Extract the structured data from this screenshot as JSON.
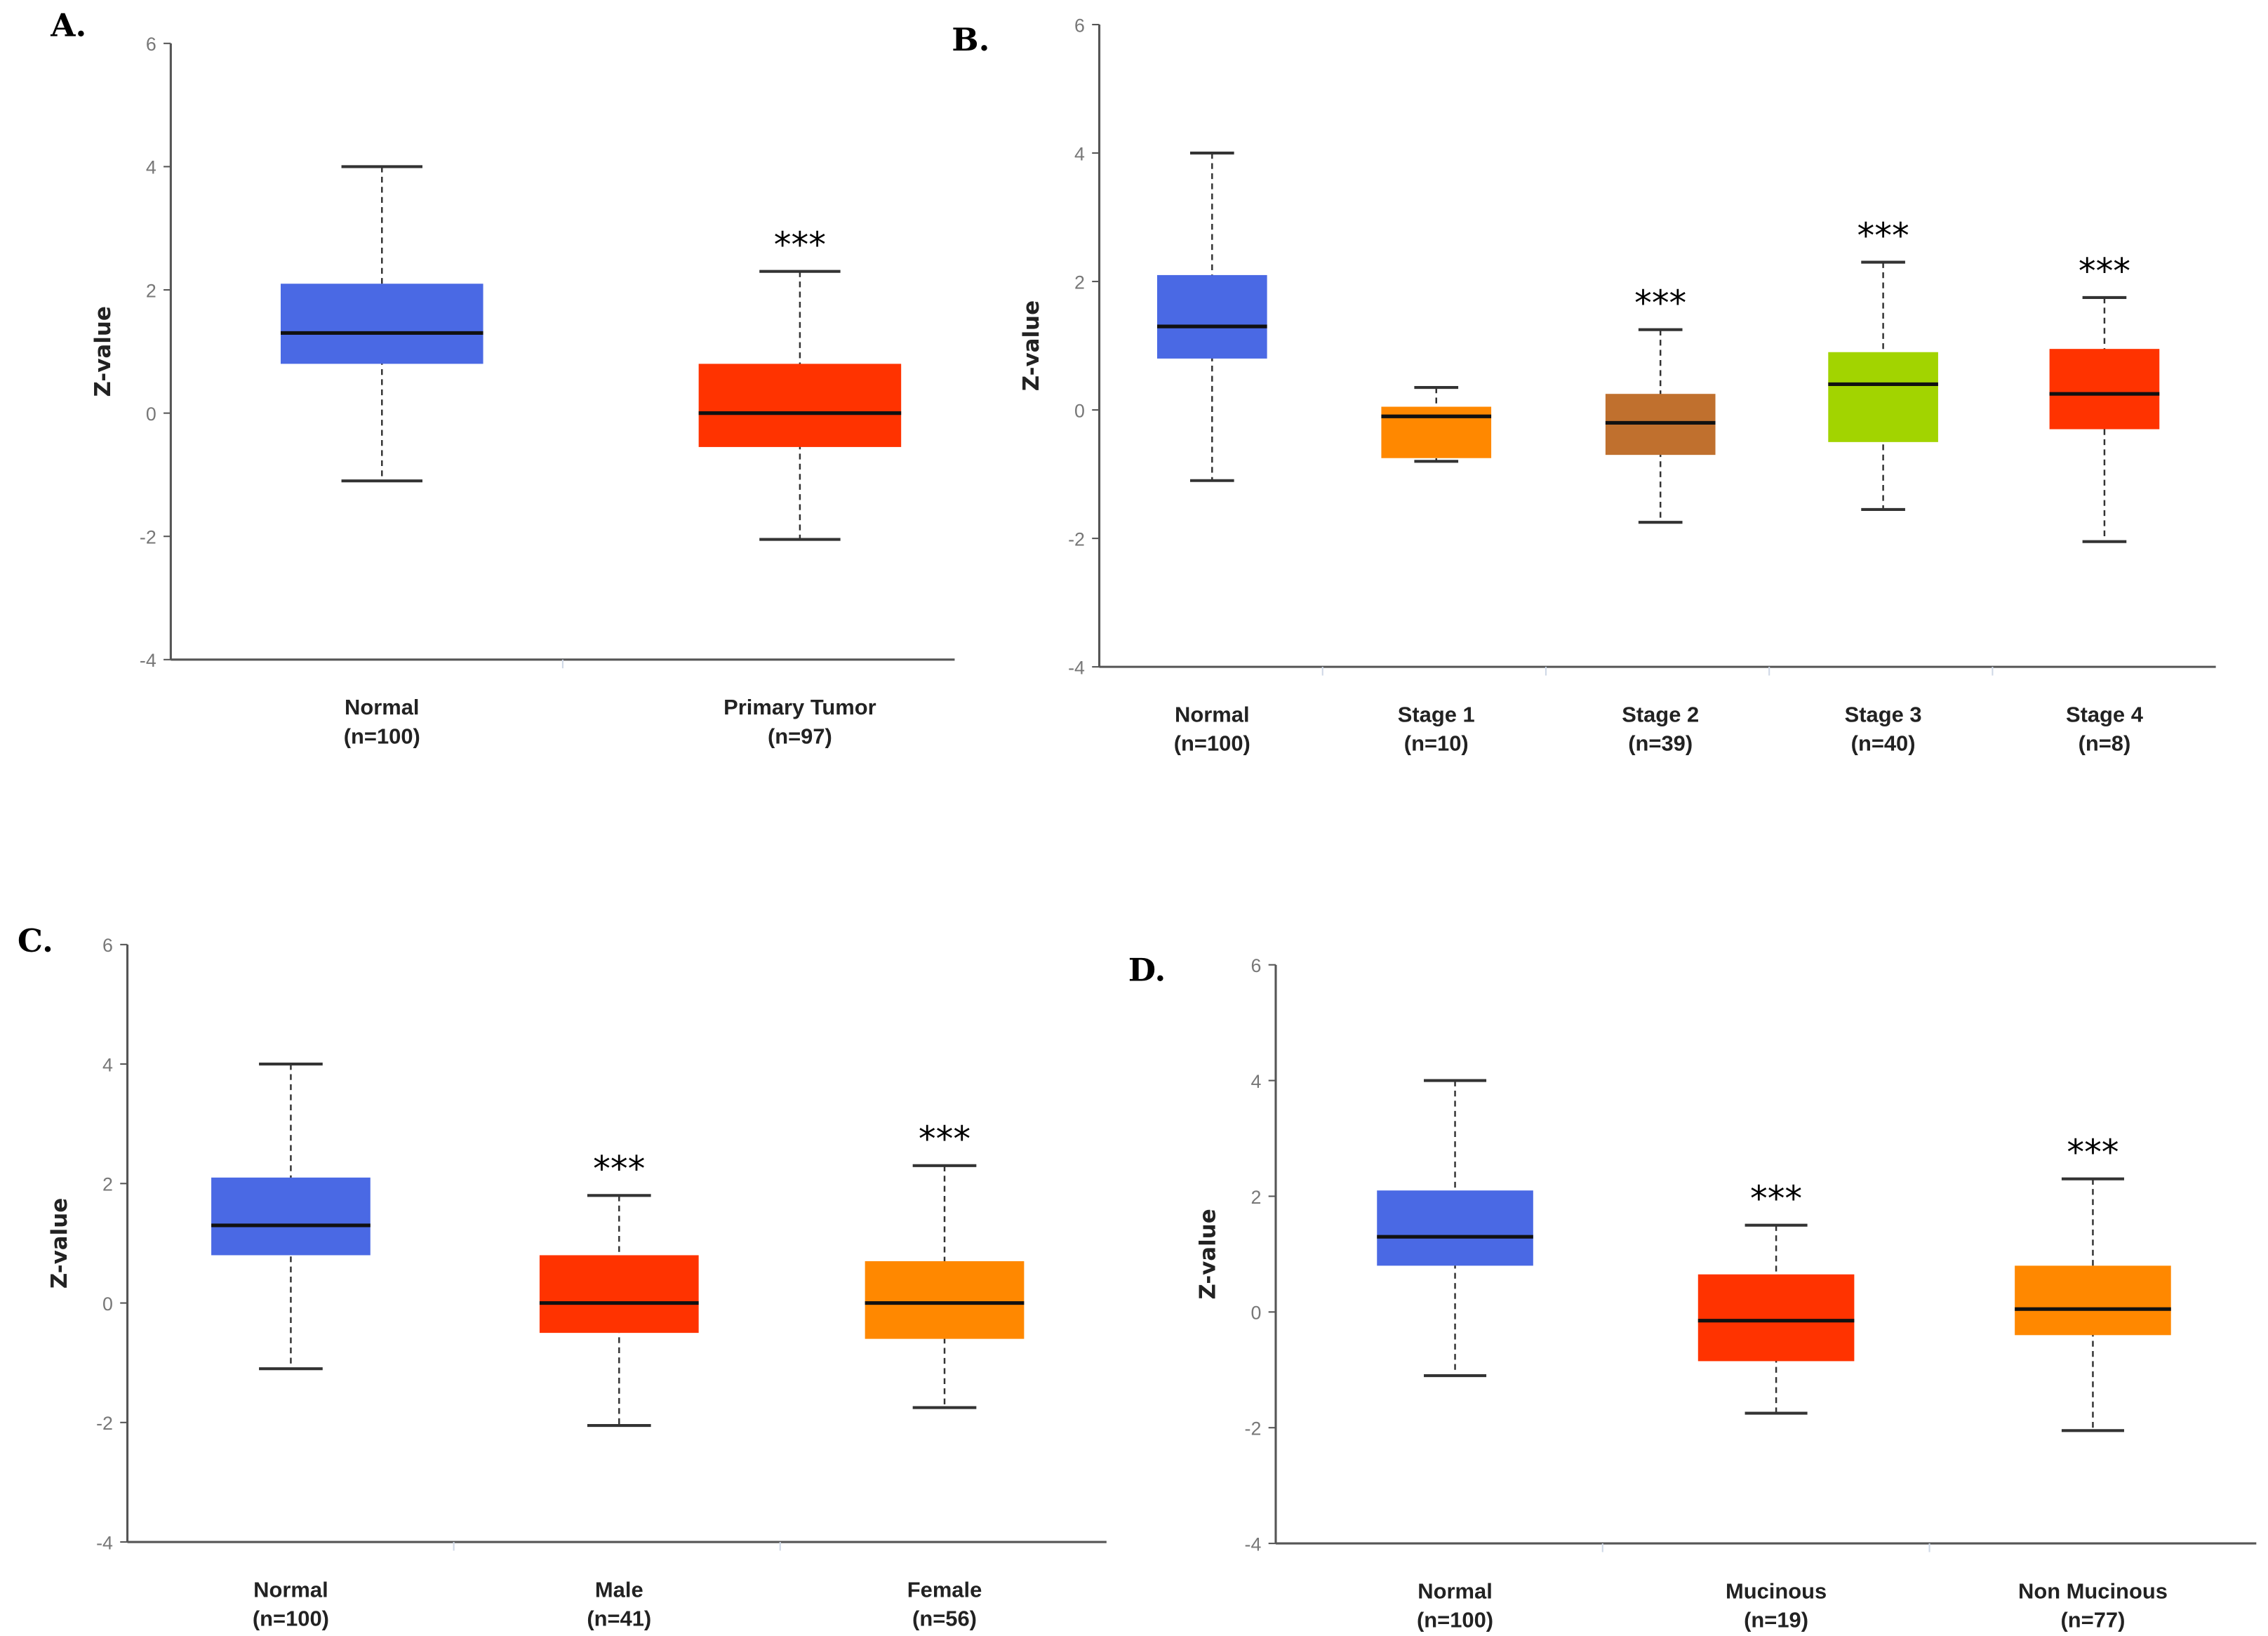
{
  "chart_data": [
    {
      "type": "box",
      "panel": "A.",
      "ylabel": "Z-value",
      "ylim": [
        -4,
        6
      ],
      "yticks": [
        -4,
        -2,
        0,
        2,
        4,
        6
      ],
      "categories": [
        {
          "name": "Normal",
          "n": "(n=100)"
        },
        {
          "name": "Primary Tumor",
          "n": "(n=97)"
        }
      ],
      "boxes": [
        {
          "min": -1.1,
          "q1": 0.8,
          "median": 1.3,
          "q3": 2.1,
          "max": 4.0,
          "color": "#4a69e4",
          "sig": ""
        },
        {
          "min": -2.05,
          "q1": -0.55,
          "median": 0.0,
          "q3": 0.8,
          "max": 2.3,
          "color": "#ff3300",
          "sig": "***"
        }
      ]
    },
    {
      "type": "box",
      "panel": "B.",
      "ylabel": "Z-value",
      "ylim": [
        -4,
        6
      ],
      "yticks": [
        -4,
        -2,
        0,
        2,
        4,
        6
      ],
      "categories": [
        {
          "name": "Normal",
          "n": "(n=100)"
        },
        {
          "name": "Stage 1",
          "n": "(n=10)"
        },
        {
          "name": "Stage 2",
          "n": "(n=39)"
        },
        {
          "name": "Stage 3",
          "n": "(n=40)"
        },
        {
          "name": "Stage 4",
          "n": "(n=8)"
        }
      ],
      "boxes": [
        {
          "min": -1.1,
          "q1": 0.8,
          "median": 1.3,
          "q3": 2.1,
          "max": 4.0,
          "color": "#4a69e4",
          "sig": ""
        },
        {
          "min": -0.8,
          "q1": -0.75,
          "median": -0.1,
          "q3": 0.05,
          "max": 0.35,
          "color": "#ff8800",
          "sig": ""
        },
        {
          "min": -1.75,
          "q1": -0.7,
          "median": -0.2,
          "q3": 0.25,
          "max": 1.25,
          "color": "#c0702e",
          "sig": "***"
        },
        {
          "min": -1.55,
          "q1": -0.5,
          "median": 0.4,
          "q3": 0.9,
          "max": 2.3,
          "color": "#a2d400",
          "sig": "***"
        },
        {
          "min": -2.05,
          "q1": -0.3,
          "median": 0.25,
          "q3": 0.95,
          "max": 1.75,
          "color": "#ff3300",
          "sig": "***"
        }
      ]
    },
    {
      "type": "box",
      "panel": "C.",
      "ylabel": "Z-value",
      "ylim": [
        -4,
        6
      ],
      "yticks": [
        -4,
        -2,
        0,
        2,
        4,
        6
      ],
      "categories": [
        {
          "name": "Normal",
          "n": "(n=100)"
        },
        {
          "name": "Male",
          "n": "(n=41)"
        },
        {
          "name": "Female",
          "n": "(n=56)"
        }
      ],
      "boxes": [
        {
          "min": -1.1,
          "q1": 0.8,
          "median": 1.3,
          "q3": 2.1,
          "max": 4.0,
          "color": "#4a69e4",
          "sig": ""
        },
        {
          "min": -2.05,
          "q1": -0.5,
          "median": 0.0,
          "q3": 0.8,
          "max": 1.8,
          "color": "#ff3300",
          "sig": "***"
        },
        {
          "min": -1.75,
          "q1": -0.6,
          "median": 0.0,
          "q3": 0.7,
          "max": 2.3,
          "color": "#ff8800",
          "sig": "***"
        }
      ]
    },
    {
      "type": "box",
      "panel": "D.",
      "ylabel": "Z-value",
      "ylim": [
        -4,
        6
      ],
      "yticks": [
        -4,
        -2,
        0,
        2,
        4,
        6
      ],
      "categories": [
        {
          "name": "Normal",
          "n": "(n=100)"
        },
        {
          "name": "Mucinous",
          "n": "(n=19)"
        },
        {
          "name": "Non Mucinous",
          "n": "(n=77)"
        }
      ],
      "boxes": [
        {
          "min": -1.1,
          "q1": 0.8,
          "median": 1.3,
          "q3": 2.1,
          "max": 4.0,
          "color": "#4a69e4",
          "sig": ""
        },
        {
          "min": -1.75,
          "q1": -0.85,
          "median": -0.15,
          "q3": 0.65,
          "max": 1.5,
          "color": "#ff3300",
          "sig": "***"
        },
        {
          "min": -2.05,
          "q1": -0.4,
          "median": 0.05,
          "q3": 0.8,
          "max": 2.3,
          "color": "#ff8800",
          "sig": "***"
        }
      ]
    }
  ]
}
